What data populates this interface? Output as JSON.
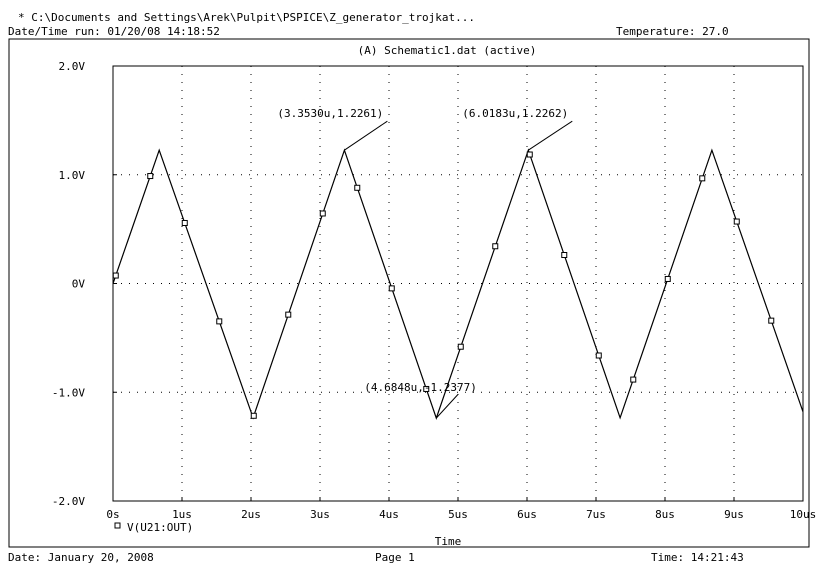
{
  "header": {
    "path": "* C:\\Documents and Settings\\Arek\\Pulpit\\PSPICE\\Z_generator_trojkat...",
    "run_label": "Date/Time run: 01/20/08 14:18:52",
    "temperature": "Temperature: 27.0"
  },
  "footer": {
    "date": "Date: January 20, 2008",
    "page": "Page 1",
    "time": "Time: 14:21:43"
  },
  "chart_data": {
    "type": "line",
    "title": "(A) Schematic1.dat (active)",
    "xlabel": "Time",
    "ylabel": "",
    "xlim": [
      0,
      10.0
    ],
    "ylim": [
      -2.0,
      2.0
    ],
    "x_unit": "us",
    "grid": "dotted",
    "x_ticks": [
      {
        "v": 0,
        "label": "0s"
      },
      {
        "v": 1,
        "label": "1us"
      },
      {
        "v": 2,
        "label": "2us"
      },
      {
        "v": 3,
        "label": "3us"
      },
      {
        "v": 4,
        "label": "4us"
      },
      {
        "v": 5,
        "label": "5us"
      },
      {
        "v": 6,
        "label": "6us"
      },
      {
        "v": 7,
        "label": "7us"
      },
      {
        "v": 8,
        "label": "8us"
      },
      {
        "v": 9,
        "label": "9us"
      },
      {
        "v": 10,
        "label": "10us"
      }
    ],
    "y_ticks": [
      {
        "v": 2,
        "label": "2.0V"
      },
      {
        "v": 1,
        "label": "1.0V"
      },
      {
        "v": 0,
        "label": "0V"
      },
      {
        "v": -1,
        "label": "-1.0V"
      },
      {
        "v": -2,
        "label": "-2.0V"
      }
    ],
    "series": [
      {
        "name": "V(U21:OUT)",
        "marker": "square",
        "x": [
          0.0,
          0.67,
          2.03,
          3.353,
          4.6848,
          6.0183,
          7.35,
          8.68,
          10.0
        ],
        "y": [
          0.0,
          1.226,
          -1.235,
          1.2261,
          -1.2377,
          1.2262,
          -1.235,
          1.226,
          -1.18
        ]
      }
    ],
    "annotations": [
      {
        "text": "(3.3530u,1.2261)",
        "x": 3.353,
        "y": 1.2261
      },
      {
        "text": "(6.0183u,1.2262)",
        "x": 6.0183,
        "y": 1.2262
      },
      {
        "text": "(4.6848u,-1.2377)",
        "x": 4.6848,
        "y": -1.2377
      }
    ]
  }
}
